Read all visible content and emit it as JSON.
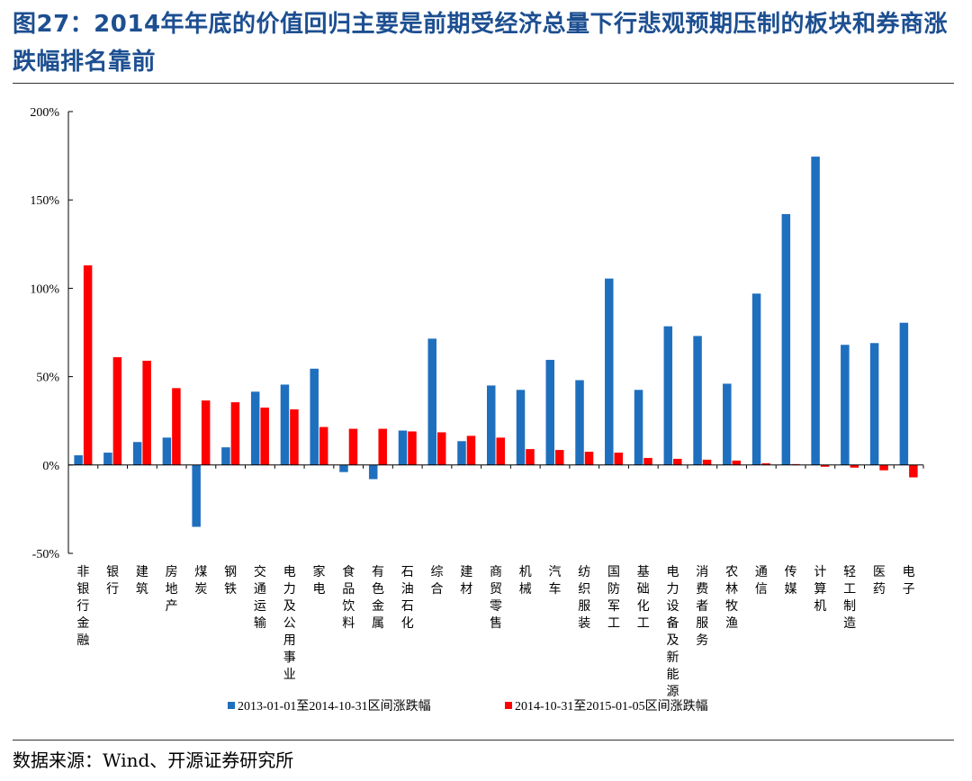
{
  "figure": {
    "title": "图27：2014年年底的价值回归主要是前期受经济总量下行悲观预期压制的板块和券商涨跌幅排名靠前",
    "source": "数据来源：Wind、开源证券研究所"
  },
  "chart_data": {
    "type": "bar",
    "title": "",
    "xlabel": "",
    "ylabel": "",
    "ylim": [
      -50,
      200
    ],
    "yticks": [
      -50,
      0,
      50,
      100,
      150,
      200
    ],
    "ytick_labels": [
      "-50%",
      "0%",
      "50%",
      "100%",
      "150%",
      "200%"
    ],
    "grid": false,
    "legend_position": "bottom",
    "categories": [
      "非银行金融",
      "银行",
      "建筑",
      "房地产",
      "煤炭",
      "钢铁",
      "交通运输",
      "电力及公用事业",
      "家电",
      "食品饮料",
      "有色金属",
      "石油石化",
      "综合",
      "建材",
      "商贸零售",
      "机械",
      "汽车",
      "纺织服装",
      "国防军工",
      "基础化工",
      "电力设备及新能源",
      "消费者服务",
      "农林牧渔",
      "通信",
      "传媒",
      "计算机",
      "轻工制造",
      "医药",
      "电子"
    ],
    "series": [
      {
        "name": "2013-01-01至2014-10-31区间涨跌幅",
        "color": "#1f6fbf",
        "values": [
          5.5,
          7,
          13,
          15.5,
          -35,
          10,
          41.5,
          45.5,
          54.5,
          -4,
          -8,
          19.5,
          71.5,
          13.5,
          45,
          42.5,
          59.5,
          48,
          105.5,
          42.5,
          78.5,
          73,
          46,
          97,
          142,
          174.5,
          68,
          69,
          80.5
        ]
      },
      {
        "name": "2014-10-31至2015-01-05区间涨跌幅",
        "color": "#ff0000",
        "values": [
          113,
          61,
          59,
          43.5,
          36.5,
          35.5,
          32.5,
          31.5,
          21.5,
          20.5,
          20.5,
          19,
          18.5,
          16.5,
          15.5,
          9,
          8.5,
          7.5,
          7,
          4,
          3.5,
          3,
          2.5,
          1,
          0.5,
          -1,
          -1.5,
          -3,
          -7
        ]
      }
    ]
  }
}
